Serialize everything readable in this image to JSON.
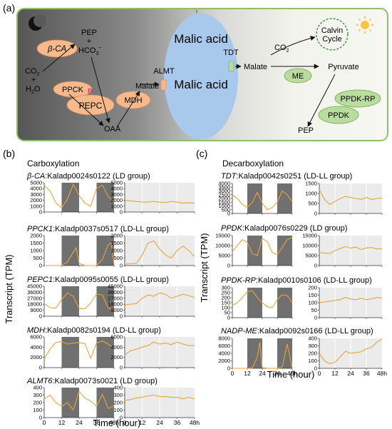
{
  "panel_a": {
    "label": "(a)",
    "icons": {
      "night": "crescent-moon-icon",
      "day": "sun-icon"
    },
    "left": {
      "co2": "CO",
      "co2_sub": "2",
      "plus": "+",
      "h2o_h": "H",
      "h2o_sub": "2",
      "h2o_o": "O",
      "pep": "PEP",
      "plus2": "+",
      "hco3": "HCO",
      "hco3_sub": "3",
      "hco3_sup": "−",
      "oaa": "OAA",
      "malate": "Malate",
      "p_mark": "P"
    },
    "enzymes": {
      "beta_ca": "β-CA",
      "ppck": "PPCK",
      "pepc": "PEPC",
      "mdh": "MDH",
      "me": "ME",
      "ppdk_rp": "PPDK-RP",
      "ppdk": "PPDK"
    },
    "vacuole": {
      "top": "Malic acid",
      "bottom": "Malic acid"
    },
    "transporters": {
      "almt": "ALMT",
      "tdt": "TDT"
    },
    "right": {
      "malate": "Malate",
      "co2": "CO",
      "co2_sub": "2",
      "calvin_1": "Calvin",
      "calvin_2": "Cycle",
      "pyruvate": "Pyruvate",
      "pep": "PEP"
    },
    "colors": {
      "enzyme_orange": "#f5b98c",
      "enzyme_green": "#b9dd9f",
      "vacuole": "#a8c8ec",
      "night_bg": "#5a5a5a",
      "day_bg": "#f5f5ee",
      "trace": "#e8a33a"
    }
  },
  "panel_b": {
    "label": "(b)",
    "title": "Carboxylation",
    "ylabel": "Transcript (TPM)",
    "xlabel": "Time (hour)",
    "x_ticks": [
      "0",
      "12",
      "24",
      "36",
      "48h"
    ],
    "genes": [
      {
        "name": "β-CA",
        "id": ":Kaladp0024s0122",
        "group": " (LD group)",
        "yticks": [
          "5000",
          "4000",
          "3000",
          "2000",
          "1000",
          "0"
        ]
      },
      {
        "name": "PPCK1",
        "id": ":Kaladp0037s0517",
        "group": " (LD-LL group)",
        "yticks": [
          "2000",
          "1500",
          "1000",
          "500",
          "0"
        ]
      },
      {
        "name": "PEPC1",
        "id": ":Kaladp0095s0055",
        "group": " (LD-LL group)",
        "yticks": [
          "45000",
          "36000",
          "27000",
          "18000",
          "9000",
          "0"
        ]
      },
      {
        "name": "MDH",
        "id": ":Kaladp0082s0194",
        "group": " (LD-LL group)",
        "yticks": [
          "6000",
          "4000",
          "2000",
          "0"
        ]
      },
      {
        "name": "ALMT6",
        "id": ":Kaladp0073s0021",
        "group": " (LD group)",
        "yticks": [
          "400",
          "300",
          "200",
          "100",
          "0"
        ]
      }
    ]
  },
  "panel_c": {
    "label": "(c)",
    "title": "Decarboxylation",
    "ylabel": "Transcript (TPM)",
    "xlabel": "Time (hour)",
    "x_ticks": [
      "0",
      "12",
      "24",
      "36",
      "48h"
    ],
    "genes": [
      {
        "name": "TDT",
        "id": ":Kaladp0042s0251",
        "group": " (LD-LL group)",
        "ld_yticks": [
          "4000",
          "3500",
          "3000",
          "2500",
          "2000",
          "1500",
          "1000",
          "500",
          "0"
        ],
        "ll_yticks": [
          "1500",
          "1000",
          "500",
          "0"
        ]
      },
      {
        "name": "PPDK",
        "id": ":Kaladp0076s0229",
        "group": " (LD group)",
        "ld_yticks": [
          "15000",
          "10000",
          "5000",
          "0"
        ],
        "ll_yticks": [
          "15000",
          "10000",
          "5000",
          "0"
        ]
      },
      {
        "name": "PPDK-RP",
        "id": ":Kaladp0010s0106",
        "group": " (LD-LL group)",
        "ld_yticks": [
          "300",
          "250",
          "200",
          "150",
          "100",
          "50",
          "0"
        ],
        "ll_yticks": [
          "200",
          "150",
          "100",
          "50",
          "0"
        ]
      },
      {
        "name": "NADP-ME",
        "id": ":Kaladp0092s0166",
        "group": " (LD-LL group)",
        "ld_yticks": [
          "8000",
          "6000",
          "4000",
          "2000",
          "0"
        ],
        "ll_yticks": [
          "400",
          "300",
          "200",
          "100",
          "0"
        ]
      }
    ]
  },
  "chart_data": [
    {
      "type": "line",
      "panel": "b",
      "gene": "β-CA",
      "condition": "LD",
      "ylim": [
        0,
        5000
      ],
      "x": [
        0,
        4,
        8,
        12,
        16,
        20,
        24,
        28,
        32,
        36,
        40,
        44,
        48
      ],
      "values": [
        4500,
        3600,
        1600,
        700,
        2200,
        4700,
        2800,
        1500,
        1000,
        4000,
        4600,
        2600,
        1800
      ]
    },
    {
      "type": "line",
      "panel": "b",
      "gene": "β-CA",
      "condition": "LL",
      "ylim": [
        0,
        5000
      ],
      "x": [
        0,
        4,
        8,
        12,
        16,
        20,
        24,
        28,
        32,
        36,
        40,
        44,
        48
      ],
      "values": [
        2000,
        1900,
        1800,
        1700,
        1700,
        1800,
        1700,
        1600,
        1800,
        1700,
        1500,
        1600,
        1500
      ]
    },
    {
      "type": "line",
      "panel": "b",
      "gene": "PPCK1",
      "condition": "LD",
      "ylim": [
        0,
        2000
      ],
      "x": [
        0,
        4,
        8,
        12,
        16,
        20,
        22,
        24,
        28,
        32,
        36,
        40,
        44,
        46,
        48
      ],
      "values": [
        0,
        0,
        0,
        0,
        250,
        900,
        1200,
        150,
        0,
        0,
        0,
        400,
        1400,
        1500,
        100
      ]
    },
    {
      "type": "line",
      "panel": "b",
      "gene": "PPCK1",
      "condition": "LL",
      "ylim": [
        0,
        2000
      ],
      "x": [
        0,
        4,
        8,
        12,
        16,
        20,
        24,
        28,
        32,
        36,
        40,
        44,
        48
      ],
      "values": [
        100,
        120,
        150,
        700,
        1500,
        1650,
        1100,
        700,
        500,
        1000,
        1300,
        1000,
        600
      ]
    },
    {
      "type": "line",
      "panel": "b",
      "gene": "PEPC1",
      "condition": "LD",
      "ylim": [
        0,
        45000
      ],
      "x": [
        0,
        4,
        8,
        12,
        16,
        20,
        24,
        28,
        32,
        36,
        40,
        44,
        48
      ],
      "values": [
        19000,
        13000,
        12000,
        25000,
        35000,
        30000,
        12000,
        11000,
        20000,
        33000,
        32000,
        12000,
        10000
      ]
    },
    {
      "type": "line",
      "panel": "b",
      "gene": "PEPC1",
      "condition": "LL",
      "ylim": [
        0,
        45000
      ],
      "x": [
        0,
        4,
        8,
        12,
        16,
        20,
        24,
        28,
        32,
        36,
        40,
        44,
        48
      ],
      "values": [
        17000,
        18000,
        19000,
        27000,
        32000,
        30000,
        35000,
        33000,
        27000,
        30000,
        33000,
        31000,
        28000
      ]
    },
    {
      "type": "line",
      "panel": "b",
      "gene": "MDH",
      "condition": "LD",
      "ylim": [
        0,
        6000
      ],
      "x": [
        0,
        4,
        8,
        12,
        16,
        20,
        24,
        28,
        32,
        36,
        40,
        44,
        48
      ],
      "values": [
        1700,
        3600,
        4900,
        5100,
        4600,
        4800,
        4900,
        4700,
        1800,
        4800,
        5200,
        4600,
        3800
      ]
    },
    {
      "type": "line",
      "panel": "b",
      "gene": "MDH",
      "condition": "LL",
      "ylim": [
        0,
        6000
      ],
      "x": [
        0,
        4,
        8,
        12,
        16,
        20,
        24,
        28,
        32,
        36,
        40,
        44,
        48
      ],
      "values": [
        2500,
        3300,
        3600,
        4000,
        4300,
        5000,
        4600,
        4800,
        4500,
        5000,
        4600,
        4300,
        4300
      ]
    },
    {
      "type": "line",
      "panel": "b",
      "gene": "ALMT6",
      "condition": "LD",
      "ylim": [
        0,
        400
      ],
      "x": [
        0,
        4,
        8,
        12,
        16,
        20,
        24,
        28,
        32,
        36,
        40,
        44,
        48
      ],
      "values": [
        250,
        300,
        200,
        150,
        200,
        100,
        350,
        260,
        220,
        150,
        310,
        120,
        160
      ]
    },
    {
      "type": "line",
      "panel": "b",
      "gene": "ALMT6",
      "condition": "LL",
      "ylim": [
        0,
        400
      ],
      "x": [
        0,
        4,
        8,
        12,
        16,
        20,
        24,
        28,
        32,
        36,
        40,
        44,
        48
      ],
      "values": [
        230,
        240,
        260,
        270,
        290,
        300,
        280,
        280,
        270,
        270,
        250,
        270,
        250
      ]
    },
    {
      "type": "line",
      "panel": "c",
      "gene": "TDT",
      "condition": "LD",
      "ylim": [
        0,
        4000
      ],
      "x": [
        0,
        4,
        8,
        12,
        16,
        20,
        24,
        28,
        32,
        36,
        40,
        44,
        48
      ],
      "values": [
        2500,
        2000,
        1200,
        800,
        1500,
        2800,
        1400,
        500,
        800,
        1500,
        3000,
        2500,
        1600
      ]
    },
    {
      "type": "line",
      "panel": "c",
      "gene": "TDT",
      "condition": "LL",
      "ylim": [
        0,
        1500
      ],
      "x": [
        0,
        4,
        8,
        12,
        16,
        20,
        24,
        28,
        32,
        36,
        40,
        44,
        48
      ],
      "values": [
        1200,
        700,
        450,
        600,
        750,
        850,
        800,
        750,
        700,
        800,
        700,
        750,
        760
      ]
    },
    {
      "type": "line",
      "panel": "c",
      "gene": "PPDK",
      "condition": "LD",
      "ylim": [
        0,
        15000
      ],
      "x": [
        0,
        4,
        8,
        12,
        16,
        20,
        24,
        28,
        32,
        36,
        40,
        44,
        48
      ],
      "values": [
        7000,
        10000,
        13000,
        11500,
        6000,
        5000,
        13500,
        12000,
        6500,
        5500,
        9000,
        13000,
        14000
      ]
    },
    {
      "type": "line",
      "panel": "c",
      "gene": "PPDK",
      "condition": "LL",
      "ylim": [
        0,
        15000
      ],
      "x": [
        0,
        4,
        8,
        12,
        16,
        20,
        24,
        28,
        32,
        36,
        40,
        44,
        48
      ],
      "values": [
        6500,
        6300,
        6000,
        7500,
        8500,
        9500,
        8700,
        9200,
        8000,
        8800,
        9000,
        8300,
        8500
      ]
    },
    {
      "type": "line",
      "panel": "c",
      "gene": "PPDK-RP",
      "condition": "LD",
      "ylim": [
        0,
        300
      ],
      "x": [
        0,
        4,
        8,
        12,
        16,
        20,
        24,
        28,
        32,
        36,
        40,
        44,
        48
      ],
      "values": [
        120,
        150,
        200,
        260,
        270,
        200,
        150,
        110,
        100,
        180,
        230,
        220,
        150
      ]
    },
    {
      "type": "line",
      "panel": "c",
      "gene": "PPDK-RP",
      "condition": "LL",
      "ylim": [
        0,
        200
      ],
      "x": [
        0,
        4,
        8,
        12,
        16,
        20,
        24,
        28,
        32,
        36,
        40,
        44,
        48
      ],
      "values": [
        100,
        105,
        110,
        115,
        120,
        135,
        125,
        120,
        130,
        120,
        125,
        135,
        130
      ]
    },
    {
      "type": "line",
      "panel": "c",
      "gene": "NADP-ME",
      "condition": "LD",
      "ylim": [
        0,
        8000
      ],
      "x": [
        0,
        4,
        8,
        12,
        16,
        20,
        22,
        24,
        28,
        32,
        36,
        40,
        44,
        48
      ],
      "values": [
        0,
        0,
        0,
        0,
        100,
        3000,
        7000,
        200,
        0,
        0,
        0,
        300,
        6500,
        200
      ]
    },
    {
      "type": "line",
      "panel": "c",
      "gene": "NADP-ME",
      "condition": "LL",
      "ylim": [
        0,
        400
      ],
      "x": [
        0,
        4,
        8,
        12,
        16,
        20,
        24,
        28,
        32,
        36,
        40,
        44,
        48
      ],
      "values": [
        200,
        100,
        60,
        80,
        150,
        230,
        200,
        210,
        220,
        260,
        280,
        350,
        390
      ]
    }
  ]
}
